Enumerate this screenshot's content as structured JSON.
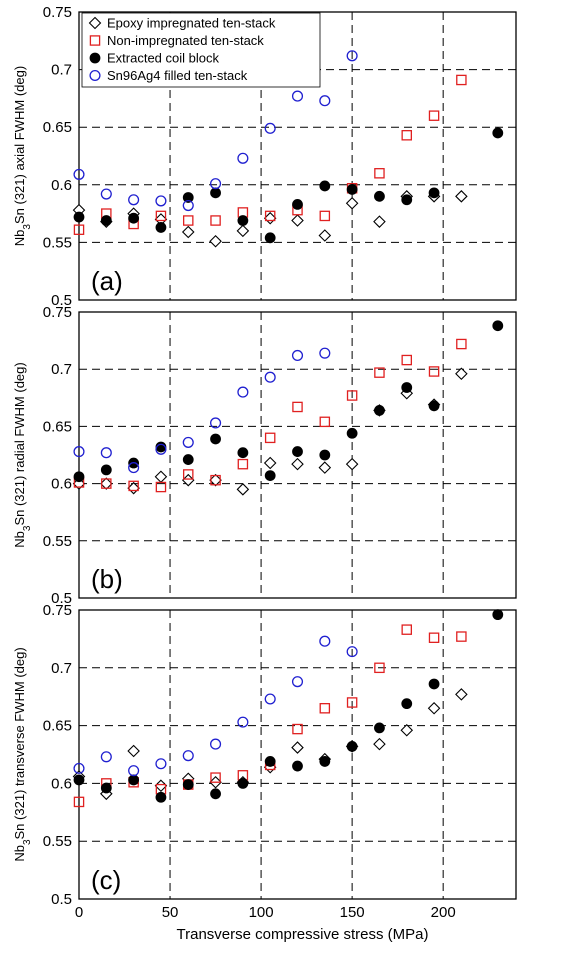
{
  "chart_data": [
    {
      "type": "scatter",
      "panel_label": "(a)",
      "ylabel_pre": "Nb",
      "ylabel_sub": "3",
      "ylabel_post": "Sn (321)  axial FWHM (deg)",
      "xlim": [
        0,
        240
      ],
      "ylim": [
        0.5,
        0.75
      ],
      "yticks": [
        "0.5",
        "0.55",
        "0.6",
        "0.65",
        "0.7",
        "0.75"
      ],
      "grid": "dashed",
      "legend": {
        "placement": "top-left",
        "entries": [
          "Epoxy impregnated ten-stack",
          "Non-impregnated ten-stack",
          "Extracted coil block",
          "Sn96Ag4 filled ten-stack"
        ]
      },
      "series": [
        {
          "name": "Epoxy impregnated ten-stack",
          "marker": "diamond-open",
          "color": "#000000",
          "x": [
            0,
            15,
            30,
            45,
            60,
            75,
            90,
            105,
            120,
            135,
            150,
            165,
            180,
            195,
            210
          ],
          "y": [
            0.578,
            0.568,
            0.575,
            0.57,
            0.559,
            0.551,
            0.56,
            0.571,
            0.569,
            0.556,
            0.584,
            0.568,
            0.59,
            0.59,
            0.59
          ]
        },
        {
          "name": "Non-impregnated ten-stack",
          "marker": "square-open",
          "color": "#e02020",
          "x": [
            0,
            15,
            30,
            45,
            60,
            75,
            90,
            105,
            120,
            135,
            150,
            165,
            180,
            195,
            210
          ],
          "y": [
            0.561,
            0.575,
            0.566,
            0.573,
            0.569,
            0.569,
            0.576,
            0.573,
            0.578,
            0.573,
            0.597,
            0.61,
            0.643,
            0.66,
            0.691
          ]
        },
        {
          "name": "Extracted coil block",
          "marker": "circle-filled",
          "color": "#000000",
          "x": [
            0,
            15,
            30,
            45,
            60,
            75,
            90,
            105,
            120,
            135,
            150,
            165,
            180,
            195,
            230
          ],
          "y": [
            0.572,
            0.569,
            0.571,
            0.563,
            0.589,
            0.593,
            0.569,
            0.554,
            0.583,
            0.599,
            0.596,
            0.59,
            0.587,
            0.593,
            0.645
          ]
        },
        {
          "name": "Sn96Ag4 filled ten-stack",
          "marker": "circle-open",
          "color": "#2020d0",
          "x": [
            0,
            15,
            30,
            45,
            60,
            75,
            90,
            105,
            120,
            135,
            150
          ],
          "y": [
            0.609,
            0.592,
            0.587,
            0.586,
            0.582,
            0.601,
            0.623,
            0.649,
            0.677,
            0.673,
            0.712
          ]
        }
      ]
    },
    {
      "type": "scatter",
      "panel_label": "(b)",
      "ylabel_pre": "Nb",
      "ylabel_sub": "3",
      "ylabel_post": "Sn (321)  radial FWHM (deg)",
      "xlim": [
        0,
        240
      ],
      "ylim": [
        0.5,
        0.75
      ],
      "yticks": [
        "0.5",
        "0.55",
        "0.6",
        "0.65",
        "0.7",
        "0.75"
      ],
      "grid": "dashed",
      "series": [
        {
          "name": "Epoxy impregnated ten-stack",
          "marker": "diamond-open",
          "color": "#000000",
          "x": [
            0,
            15,
            30,
            45,
            60,
            75,
            90,
            105,
            120,
            135,
            150,
            165,
            180,
            195,
            210
          ],
          "y": [
            0.6,
            0.6,
            0.596,
            0.606,
            0.603,
            0.603,
            0.595,
            0.618,
            0.617,
            0.614,
            0.617,
            0.664,
            0.679,
            0.669,
            0.696
          ]
        },
        {
          "name": "Non-impregnated ten-stack",
          "marker": "square-open",
          "color": "#e02020",
          "x": [
            0,
            15,
            30,
            45,
            60,
            75,
            90,
            105,
            120,
            135,
            150,
            165,
            180,
            195,
            210
          ],
          "y": [
            0.601,
            0.6,
            0.598,
            0.597,
            0.608,
            0.603,
            0.617,
            0.64,
            0.667,
            0.654,
            0.677,
            0.697,
            0.708,
            0.698,
            0.722
          ]
        },
        {
          "name": "Extracted coil block",
          "marker": "circle-filled",
          "color": "#000000",
          "x": [
            0,
            15,
            30,
            45,
            60,
            75,
            90,
            105,
            120,
            135,
            150,
            165,
            180,
            195,
            230
          ],
          "y": [
            0.606,
            0.612,
            0.618,
            0.632,
            0.621,
            0.639,
            0.627,
            0.607,
            0.628,
            0.625,
            0.644,
            0.664,
            0.684,
            0.668,
            0.738
          ]
        },
        {
          "name": "Sn96Ag4 filled ten-stack",
          "marker": "circle-open",
          "color": "#2020d0",
          "x": [
            0,
            15,
            30,
            45,
            60,
            75,
            90,
            105,
            120,
            135
          ],
          "y": [
            0.628,
            0.627,
            0.614,
            0.63,
            0.636,
            0.653,
            0.68,
            0.693,
            0.712,
            0.714
          ]
        }
      ]
    },
    {
      "type": "scatter",
      "panel_label": "(c)",
      "ylabel_pre": "Nb",
      "ylabel_sub": "3",
      "ylabel_post": "Sn (321) transverse FWHM (deg)",
      "xlabel": "Transverse compressive stress (MPa)",
      "xlim": [
        0,
        240
      ],
      "ylim": [
        0.5,
        0.75
      ],
      "xticks": [
        "0",
        "50",
        "100",
        "150",
        "200"
      ],
      "yticks": [
        "0.5",
        "0.55",
        "0.6",
        "0.65",
        "0.7",
        "0.75"
      ],
      "grid": "dashed",
      "series": [
        {
          "name": "Epoxy impregnated ten-stack",
          "marker": "diamond-open",
          "color": "#000000",
          "x": [
            0,
            15,
            30,
            45,
            60,
            75,
            90,
            105,
            120,
            135,
            150,
            165,
            180,
            195,
            210
          ],
          "y": [
            0.606,
            0.591,
            0.628,
            0.598,
            0.604,
            0.601,
            0.601,
            0.614,
            0.631,
            0.621,
            0.632,
            0.634,
            0.646,
            0.665,
            0.677
          ]
        },
        {
          "name": "Non-impregnated ten-stack",
          "marker": "square-open",
          "color": "#e02020",
          "x": [
            0,
            15,
            30,
            45,
            60,
            75,
            90,
            105,
            120,
            135,
            150,
            165,
            180,
            195,
            210
          ],
          "y": [
            0.584,
            0.6,
            0.601,
            0.595,
            0.599,
            0.605,
            0.607,
            0.616,
            0.647,
            0.665,
            0.67,
            0.7,
            0.733,
            0.726,
            0.727
          ]
        },
        {
          "name": "Extracted coil block",
          "marker": "circle-filled",
          "color": "#000000",
          "x": [
            0,
            15,
            30,
            45,
            60,
            75,
            90,
            105,
            120,
            135,
            150,
            165,
            180,
            195,
            230
          ],
          "y": [
            0.603,
            0.596,
            0.603,
            0.588,
            0.599,
            0.591,
            0.6,
            0.619,
            0.615,
            0.619,
            0.632,
            0.648,
            0.669,
            0.686,
            0.746
          ]
        },
        {
          "name": "Sn96Ag4 filled ten-stack",
          "marker": "circle-open",
          "color": "#2020d0",
          "x": [
            0,
            15,
            30,
            45,
            60,
            75,
            90,
            105,
            120,
            135,
            150
          ],
          "y": [
            0.613,
            0.623,
            0.611,
            0.617,
            0.624,
            0.634,
            0.653,
            0.673,
            0.688,
            0.723,
            0.714
          ]
        }
      ]
    }
  ]
}
